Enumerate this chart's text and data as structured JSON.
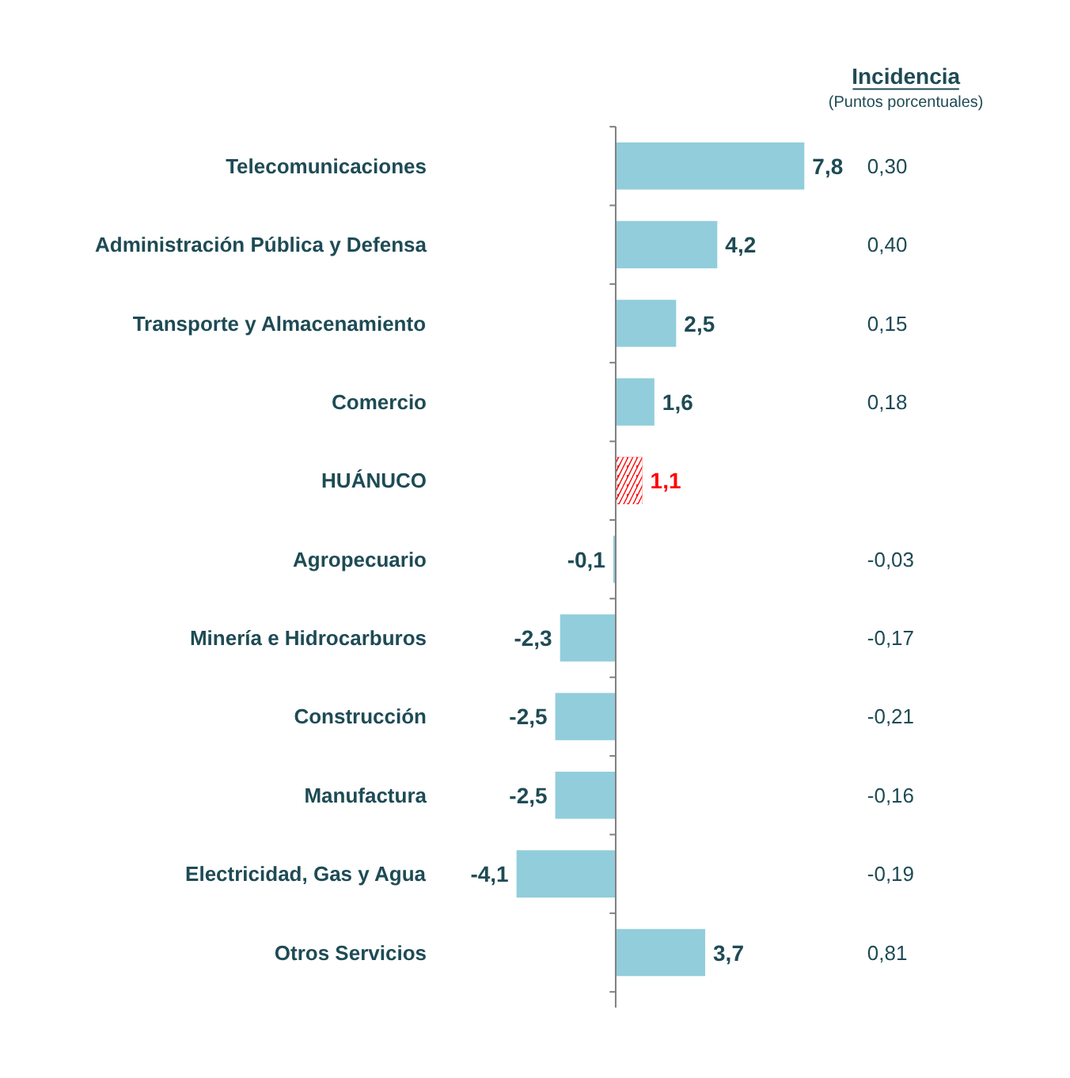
{
  "chart_data": {
    "type": "bar",
    "orientation": "horizontal",
    "categories": [
      "Telecomunicaciones",
      "Administración Pública y Defensa",
      "Transporte y Almacenamiento",
      "Comercio",
      "HUÁNUCO",
      "Agropecuario",
      "Minería e Hidrocarburos",
      "Construcción",
      "Manufactura",
      "Electricidad, Gas y Agua",
      "Otros Servicios"
    ],
    "values": [
      7.8,
      4.2,
      2.5,
      1.6,
      1.1,
      -0.1,
      -2.3,
      -2.5,
      -2.5,
      -4.1,
      3.7
    ],
    "value_labels": [
      "7,8",
      "4,2",
      "2,5",
      "1,6",
      "1,1",
      "-0,1",
      "-2,3",
      "-2,5",
      "-2,5",
      "-4,1",
      "3,7"
    ],
    "colors": [
      "#92cddc",
      "#92cddc",
      "#92cddc",
      "#92cddc",
      "#ff0000",
      "#92cddc",
      "#92cddc",
      "#92cddc",
      "#92cddc",
      "#92cddc",
      "#92cddc"
    ],
    "annotations": [
      "Incidencia",
      "(Puntos porcentuales)",
      "0,30",
      "0,40",
      "0,15",
      "0,18",
      "-0,03",
      "-0,17",
      "-0,21",
      "-0,16",
      "-0,19",
      "0,81"
    ],
    "tick_labels": "y",
    "grid": false
  }
}
